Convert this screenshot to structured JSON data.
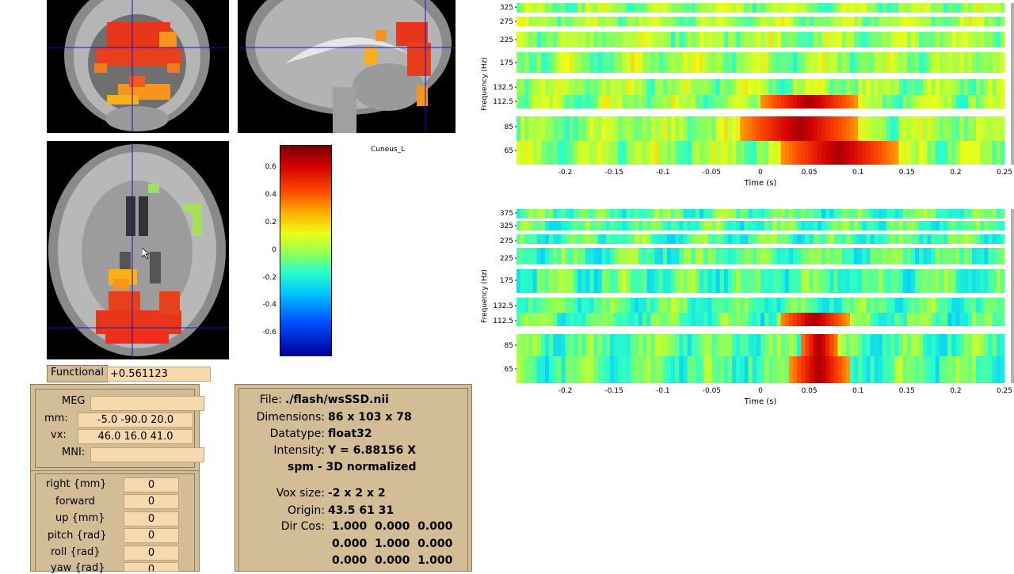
{
  "colorbar": {
    "ticks": [
      "0.6",
      "0.4",
      "0.2",
      "0",
      "-0.2",
      "-0.4",
      "-0.6"
    ],
    "region_label": "Cuneus_L"
  },
  "functional": {
    "label": "Functional",
    "value": "+0.561123"
  },
  "coords": {
    "meg_label": "MEG",
    "meg_value": "",
    "mm_label": "mm:",
    "mm_value": "-5.0 -90.0 20.0",
    "vx_label": "vx:",
    "vx_value": "46.0 16.0 41.0",
    "mni_label": "MNI:",
    "mni_value": ""
  },
  "reorient": [
    {
      "label": "right  {mm}",
      "value": "0"
    },
    {
      "label": "forward",
      "value": "0"
    },
    {
      "label": "up  {mm}",
      "value": "0"
    },
    {
      "label": "pitch  {rad}",
      "value": "0"
    },
    {
      "label": "roll  {rad}",
      "value": "0"
    },
    {
      "label": "yaw  {rad}",
      "value": "0"
    }
  ],
  "fileinfo": {
    "file_label": "File:",
    "file_value": "./flash/wsSSD.nii",
    "dims_label": "Dimensions:",
    "dims_value": "86 x 103 x 78",
    "dtype_label": "Datatype:",
    "dtype_value": "float32",
    "intensity_label": "Intensity:",
    "intensity_value": "Y = 6.88156 X",
    "space_value": "spm - 3D normalized",
    "voxsize_label": "Vox size:",
    "voxsize_value": "-2 x 2 x 2",
    "origin_label": "Origin:",
    "origin_value": "43.5 61 31",
    "dircos_label": "Dir Cos:",
    "dircos_rows": [
      "1.000  0.000  0.000",
      "0.000  1.000  0.000",
      "0.000  0.000  1.000"
    ]
  },
  "chart_data": [
    {
      "type": "heatmap",
      "title": "",
      "xlabel": "Time (s)",
      "ylabel": "Frequency (Hz)",
      "xlim": [
        -0.25,
        0.25
      ],
      "x_ticks": [
        "-0.2",
        "-0.15",
        "-0.1",
        "-0.05",
        "0",
        "0.05",
        "0.1",
        "0.15",
        "0.2",
        "0.25"
      ],
      "y_ticks": [
        "325",
        "275",
        "225",
        "175",
        "132.5",
        "112.5",
        "85",
        "65"
      ],
      "peaks": [
        {
          "freq": "112.5",
          "time_range": [
            0.0,
            0.1
          ],
          "level": "high"
        },
        {
          "freq": "85",
          "time_range": [
            -0.02,
            0.1
          ],
          "level": "high"
        },
        {
          "freq": "65",
          "time_range": [
            0.02,
            0.14
          ],
          "level": "high"
        }
      ]
    },
    {
      "type": "heatmap",
      "title": "",
      "xlabel": "Time (s)",
      "ylabel": "Frequency (Hz)",
      "xlim": [
        -0.25,
        0.25
      ],
      "x_ticks": [
        "-0.2",
        "-0.15",
        "-0.1",
        "-0.05",
        "0",
        "0.05",
        "0.1",
        "0.15",
        "0.2",
        "0.25"
      ],
      "y_ticks": [
        "375",
        "325",
        "275",
        "225",
        "175",
        "132.5",
        "112.5",
        "85",
        "65"
      ],
      "peaks": [
        {
          "freq": "112.5",
          "time_range": [
            0.02,
            0.09
          ],
          "level": "high"
        },
        {
          "freq": "85",
          "time_range": [
            0.04,
            0.08
          ],
          "level": "high"
        },
        {
          "freq": "65",
          "time_range": [
            0.03,
            0.09
          ],
          "level": "high"
        }
      ]
    }
  ]
}
